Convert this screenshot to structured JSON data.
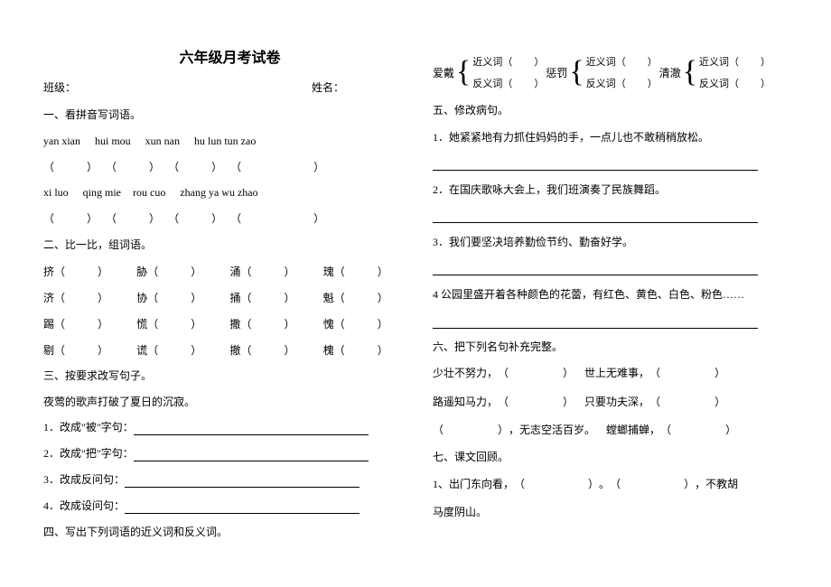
{
  "title": "六年级月考试卷",
  "header": {
    "class_label": "班级：",
    "name_label": "姓名："
  },
  "s1": {
    "heading": "一、看拼音写词语。",
    "row1": [
      "yan  xian",
      "hui  mou",
      "xun  nan",
      "hu  lun  tun  zao"
    ],
    "row2": [
      "xi  luo",
      "qing  mie",
      "rou  cuo",
      "zhang  ya  wu  zhao"
    ]
  },
  "s2": {
    "heading": "二、比一比，组词语。",
    "rows": [
      [
        "挤",
        "胁",
        "涌",
        "瑰"
      ],
      [
        "济",
        "协",
        "捅",
        "魁"
      ],
      [
        "踢",
        "慌",
        "撒",
        "愧"
      ],
      [
        "剔",
        "谎",
        "撤",
        "槐"
      ]
    ]
  },
  "s3": {
    "heading": "三、按要求改写句子。",
    "base": "夜莺的歌声打破了夏日的沉寂。",
    "items": [
      "1．改成\"被\"字句：",
      "2．改成\"把\"字句：",
      "3．改成反问句：",
      "4．改成设问句："
    ]
  },
  "s4": {
    "heading": "四、写出下列词语的近义词和反义词。",
    "words": [
      "爱戴",
      "惩罚",
      "清澈"
    ],
    "syn": "近义词",
    "ant": "反义词"
  },
  "s5": {
    "heading": "五、修改病句。",
    "items": [
      "1．她紧紧地有力抓住妈妈的手，一点儿也不敢稍稍放松。",
      "2．在国庆歌咏大会上，我们班演奏了民族舞蹈。",
      "3．我们要坚决培养勤俭节约、勤奋好学。",
      "4 公园里盛开着各种颜色的花蕾，有红色、黄色、白色、粉色……"
    ]
  },
  "s6": {
    "heading": "六、把下列名句补充完整。",
    "l1a": "少壮不努力，",
    "l1b": "世上无难事，",
    "l2a": "路遥知马力，",
    "l2b": "只要功夫深，",
    "l3a": "，无志空活百岁。",
    "l3b": "螳螂捕蝉，"
  },
  "s7": {
    "heading": "七、课文回顾。",
    "l1a": "1、出门东向看，",
    "l1b": "，不教胡",
    "l2": "马度阴山。"
  }
}
